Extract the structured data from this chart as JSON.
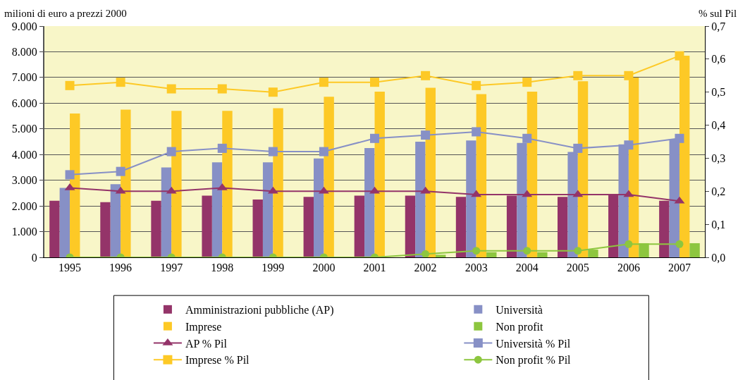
{
  "chart_data": {
    "type": "bar",
    "ylabel": "milioni di euro a prezzi 2000",
    "y2label": "% sul Pil",
    "categories": [
      "1995",
      "1996",
      "1997",
      "1998",
      "1999",
      "2000",
      "2001",
      "2002",
      "2003",
      "2004",
      "2005",
      "2006",
      "2007"
    ],
    "series": [
      {
        "name": "Amministrazioni pubbliche (AP)",
        "color": "#943469",
        "values": [
          2200,
          2150,
          2200,
          2400,
          2250,
          2350,
          2400,
          2400,
          2350,
          2400,
          2350,
          2450,
          2200
        ]
      },
      {
        "name": "Università",
        "color": "#8790c6",
        "values": [
          2700,
          2850,
          3500,
          3700,
          3700,
          3850,
          4250,
          4500,
          4550,
          4450,
          4100,
          4400,
          4600
        ]
      },
      {
        "name": "Imprese",
        "color": "#fdc926",
        "values": [
          5600,
          5750,
          5700,
          5700,
          5800,
          6250,
          6450,
          6600,
          6350,
          6450,
          6850,
          7000,
          7850
        ]
      },
      {
        "name": "Non profit",
        "color": "#8dc63f",
        "values": [
          0,
          0,
          0,
          0,
          0,
          0,
          0,
          100,
          200,
          200,
          300,
          550,
          550
        ]
      },
      {
        "name": "AP % Pil",
        "type": "line",
        "axis": "y2",
        "marker": "triangle",
        "color": "#943469",
        "values": [
          0.21,
          0.2,
          0.2,
          0.21,
          0.2,
          0.2,
          0.2,
          0.2,
          0.19,
          0.19,
          0.19,
          0.19,
          0.17
        ]
      },
      {
        "name": "Università % Pil",
        "type": "line",
        "axis": "y2",
        "marker": "square",
        "color": "#8790c6",
        "values": [
          0.25,
          0.26,
          0.32,
          0.33,
          0.32,
          0.32,
          0.36,
          0.37,
          0.38,
          0.36,
          0.33,
          0.34,
          0.36
        ]
      },
      {
        "name": "Imprese % Pil",
        "type": "line",
        "axis": "y2",
        "marker": "square",
        "color": "#fdc926",
        "values": [
          0.52,
          0.53,
          0.51,
          0.51,
          0.5,
          0.53,
          0.53,
          0.55,
          0.52,
          0.53,
          0.55,
          0.55,
          0.61
        ]
      },
      {
        "name": "Non profit % Pil",
        "type": "line",
        "axis": "y2",
        "marker": "circle",
        "color": "#8dc63f",
        "values": [
          0,
          0,
          0,
          0,
          0,
          0,
          0,
          0.01,
          0.02,
          0.02,
          0.02,
          0.04,
          0.04
        ]
      }
    ],
    "ylim": [
      0,
      9000
    ],
    "yticks": [
      {
        "value": 0,
        "label": "0"
      },
      {
        "value": 1000,
        "label": "1.000"
      },
      {
        "value": 2000,
        "label": "2.000"
      },
      {
        "value": 3000,
        "label": "3.000"
      },
      {
        "value": 4000,
        "label": "4.000"
      },
      {
        "value": 5000,
        "label": "5.000"
      },
      {
        "value": 6000,
        "label": "6.000"
      },
      {
        "value": 7000,
        "label": "7.000"
      },
      {
        "value": 8000,
        "label": "8.000"
      },
      {
        "value": 9000,
        "label": "9.000"
      }
    ],
    "y2lim": [
      0,
      0.7
    ],
    "y2ticks": [
      {
        "value": 0,
        "label": "0,0"
      },
      {
        "value": 0.1,
        "label": "0,1"
      },
      {
        "value": 0.2,
        "label": "0,2"
      },
      {
        "value": 0.3,
        "label": "0,3"
      },
      {
        "value": 0.4,
        "label": "0,4"
      },
      {
        "value": 0.5,
        "label": "0,5"
      },
      {
        "value": 0.6,
        "label": "0,6"
      },
      {
        "value": 0.7,
        "label": "0,7"
      }
    ],
    "grid": "y",
    "legend": "bottom"
  }
}
